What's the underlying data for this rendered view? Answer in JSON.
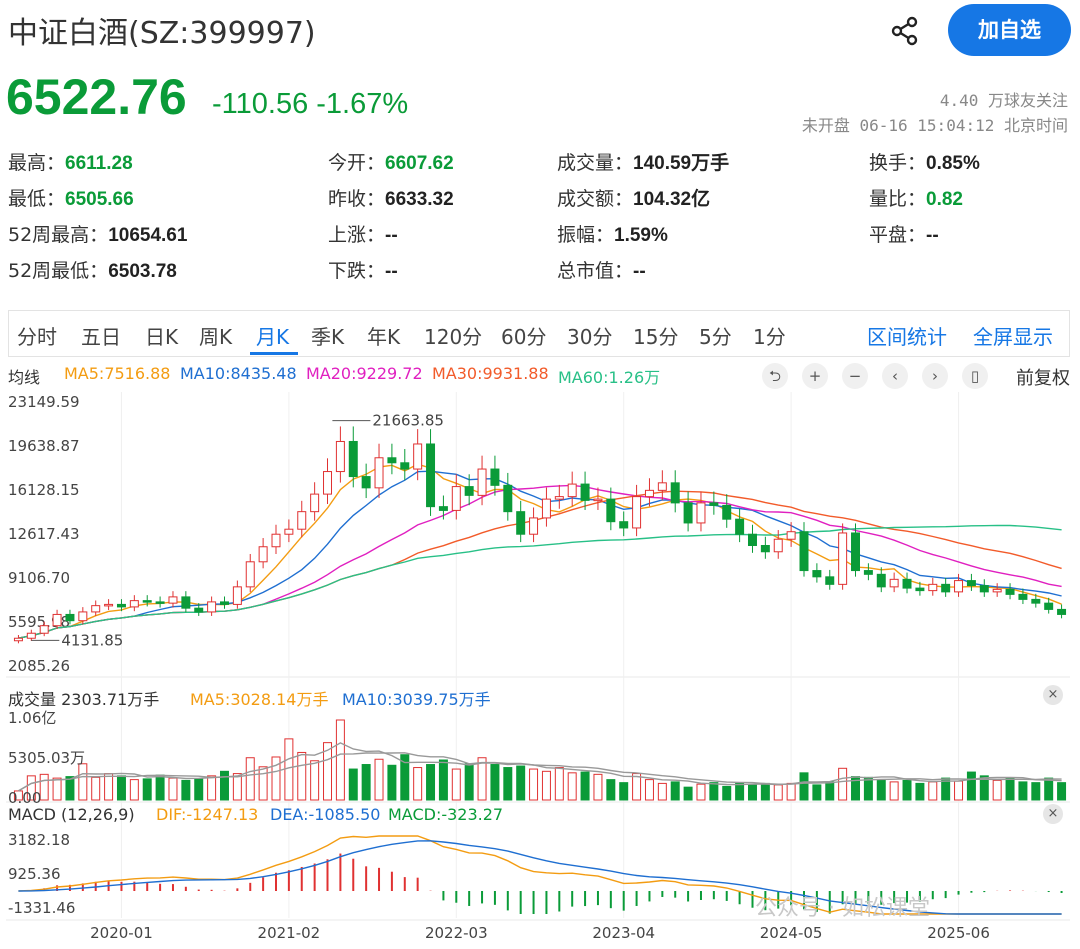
{
  "header": {
    "title": "中证白酒(SZ:399997)",
    "price": "6522.76",
    "change": "-110.56 -1.67%",
    "followers": "4.40 万球友关注",
    "status": "未开盘 06-16 15:04:12 北京时间",
    "follow_label": "加自选",
    "price_color": "#0a9b38",
    "accent_color": "#1677e5"
  },
  "stats": [
    {
      "label": "最高：",
      "value": "6611.28",
      "color": "green"
    },
    {
      "label": "今开：",
      "value": "6607.62",
      "color": "green"
    },
    {
      "label": "成交量：",
      "value": "140.59万手",
      "color": "normal"
    },
    {
      "label": "换手：",
      "value": "0.85%",
      "color": "normal"
    },
    {
      "label": "最低：",
      "value": "6505.66",
      "color": "green"
    },
    {
      "label": "昨收：",
      "value": "6633.32",
      "color": "normal"
    },
    {
      "label": "成交额：",
      "value": "104.32亿",
      "color": "normal"
    },
    {
      "label": "量比：",
      "value": "0.82",
      "color": "green"
    },
    {
      "label": "52周最高：",
      "value": "10654.61",
      "color": "normal"
    },
    {
      "label": "上涨：",
      "value": "--",
      "color": "normal"
    },
    {
      "label": "振幅：",
      "value": "1.59%",
      "color": "normal"
    },
    {
      "label": "平盘：",
      "value": "--",
      "color": "normal"
    },
    {
      "label": "52周最低：",
      "value": "6503.78",
      "color": "normal"
    },
    {
      "label": "下跌：",
      "value": "--",
      "color": "normal"
    },
    {
      "label": "总市值：",
      "value": "--",
      "color": "normal"
    }
  ],
  "tabs": [
    "分时",
    "五日",
    "日K",
    "周K",
    "月K",
    "季K",
    "年K",
    "120分",
    "60分",
    "30分",
    "15分",
    "5分",
    "1分"
  ],
  "active_tab": "月K",
  "tab_actions": [
    "区间统计",
    "全屏显示"
  ],
  "ma_legend": {
    "label": "均线",
    "items": [
      {
        "text": "MA5:7516.88",
        "color": "#f39c12"
      },
      {
        "text": "MA10:8435.48",
        "color": "#1f6fd1"
      },
      {
        "text": "MA20:9229.72",
        "color": "#e020c0"
      },
      {
        "text": "MA30:9931.88",
        "color": "#f25b2a"
      },
      {
        "text": "MA60:1.26万",
        "color": "#28c087"
      }
    ],
    "tools": [
      "⮌",
      "+",
      "−",
      "‹",
      "›",
      "▯"
    ],
    "tool_names": [
      "undo-icon",
      "zoom-in-icon",
      "zoom-out-icon",
      "prev-icon",
      "next-icon",
      "candle-icon"
    ],
    "adjust_label": "前复权"
  },
  "volume_legend": {
    "label": "成交量 2303.71万手",
    "items": [
      {
        "text": "MA5:3028.14万手",
        "color": "#f39c12"
      },
      {
        "text": "MA10:3039.75万手",
        "color": "#1f6fd1"
      }
    ]
  },
  "macd_legend": {
    "label": "MACD (12,26,9)",
    "items": [
      {
        "text": "DIF:-1247.13",
        "color": "#f39c12"
      },
      {
        "text": "DEA:-1085.50",
        "color": "#1f6fd1"
      },
      {
        "text": "MACD:-323.27",
        "color": "#0a9b38"
      }
    ]
  },
  "close_icon": "×",
  "watermark_text": "公众号 · 如松课堂",
  "chart_data": {
    "type": "candlestick",
    "price_axis": [
      "23149.59",
      "19638.87",
      "16128.15",
      "12617.43",
      "9106.70",
      "5595.98",
      "2085.26"
    ],
    "price_range": [
      2085.26,
      23149.59
    ],
    "max_label": "21663.85",
    "min_label": "4131.85",
    "volume_axis": [
      "1.06亿",
      "5305.03万",
      "0.00"
    ],
    "volume_max": 10600,
    "macd_axis": [
      "3182.18",
      "925.36",
      "-1331.46"
    ],
    "macd_range": [
      -1331.46,
      3182.18
    ],
    "x_labels": [
      "2020-01",
      "2021-02",
      "2022-03",
      "2023-04",
      "2024-05",
      "2025-06"
    ],
    "x_label_index": [
      8,
      21,
      34,
      47,
      60,
      73
    ],
    "closes": [
      4300,
      4700,
      5300,
      6200,
      5700,
      6400,
      6900,
      7000,
      6800,
      7300,
      7200,
      7100,
      7600,
      6700,
      6400,
      7200,
      7000,
      8400,
      10400,
      11600,
      12600,
      13000,
      14400,
      15800,
      17600,
      20000,
      17200,
      16300,
      18700,
      18300,
      17800,
      19800,
      14800,
      14500,
      16400,
      15700,
      17800,
      16500,
      14400,
      12600,
      13900,
      15400,
      15600,
      16600,
      15300,
      15400,
      13600,
      13100,
      15600,
      16100,
      16700,
      15100,
      13500,
      15100,
      14900,
      13800,
      12600,
      11700,
      11200,
      12200,
      12800,
      9700,
      9200,
      8600,
      12700,
      9700,
      9400,
      8400,
      9000,
      8300,
      8100,
      8600,
      8000,
      8900,
      8500,
      8000,
      8200,
      7800,
      7400,
      7100,
      6600,
      6200
    ],
    "opens": [
      4100,
      4300,
      4700,
      5300,
      6200,
      5700,
      6400,
      6900,
      7000,
      6800,
      7300,
      7200,
      7100,
      7600,
      6700,
      6400,
      7200,
      7000,
      8400,
      10400,
      11600,
      12600,
      13000,
      14400,
      15800,
      17600,
      20000,
      17200,
      16300,
      18700,
      18300,
      17800,
      19800,
      14800,
      14500,
      16400,
      15700,
      17800,
      16500,
      14400,
      12600,
      13900,
      15400,
      15600,
      16600,
      15300,
      15400,
      13600,
      13100,
      15600,
      16100,
      16700,
      15100,
      13500,
      15100,
      14900,
      13800,
      12600,
      11700,
      11200,
      12200,
      12800,
      9700,
      9200,
      8600,
      12700,
      9700,
      9400,
      8400,
      9000,
      8300,
      8100,
      8600,
      8000,
      8900,
      8500,
      8000,
      8200,
      7800,
      7400,
      7100,
      6600
    ],
    "volumes": [
      1200,
      3200,
      3400,
      2900,
      3100,
      4800,
      3000,
      3500,
      3200,
      2700,
      2800,
      3300,
      2900,
      2600,
      2800,
      3200,
      3800,
      3500,
      5600,
      4400,
      5700,
      8100,
      6300,
      5200,
      7600,
      10600,
      4100,
      4700,
      5400,
      4600,
      6000,
      4300,
      4700,
      5300,
      4100,
      4800,
      5600,
      4700,
      4300,
      4500,
      4100,
      3800,
      4300,
      3600,
      3700,
      3400,
      2700,
      2300,
      3500,
      2700,
      2200,
      2400,
      1700,
      2100,
      2300,
      1800,
      2300,
      2000,
      2200,
      2000,
      2200,
      3600,
      2000,
      2400,
      4200,
      3100,
      3000,
      2600,
      2400,
      2600,
      2200,
      2400,
      2900,
      2500,
      3700,
      3200,
      2600,
      2900,
      2400,
      2300,
      2900,
      2300
    ],
    "series": [
      {
        "name": "MA5",
        "color": "#f39c12"
      },
      {
        "name": "MA10",
        "color": "#1f6fd1"
      },
      {
        "name": "MA20",
        "color": "#e020c0"
      },
      {
        "name": "MA30",
        "color": "#f25b2a"
      },
      {
        "name": "MA60",
        "color": "#28c087"
      }
    ],
    "up_color": "#e03131",
    "down_color": "#0a9b38"
  }
}
